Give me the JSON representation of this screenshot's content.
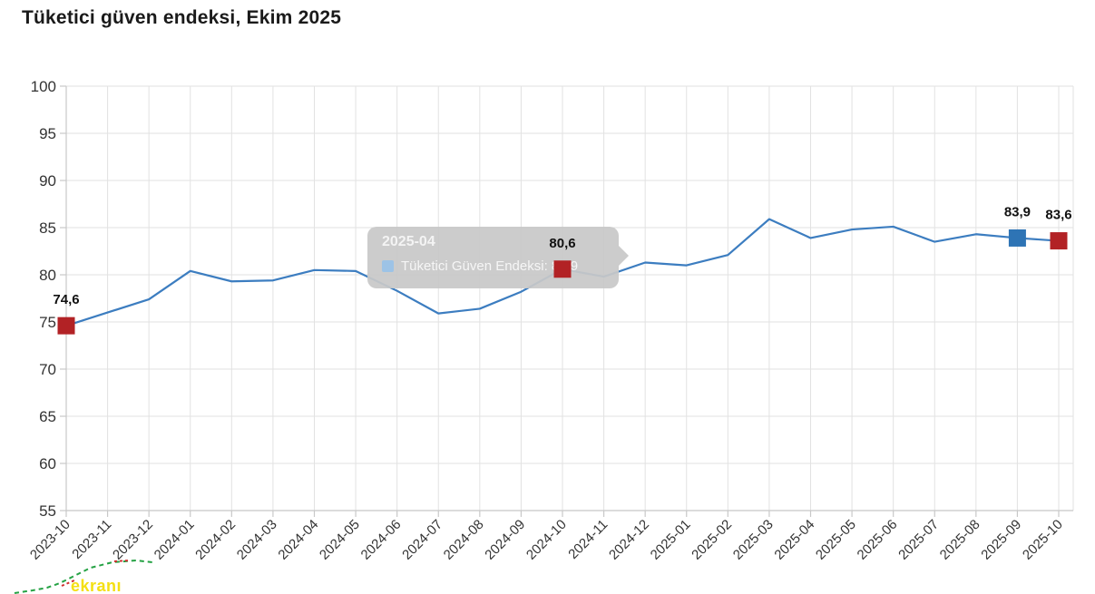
{
  "title": "Tüketici güven endeksi, Ekim 2025",
  "tooltip": {
    "title": "2025-04",
    "series_label": "Tüketici Güven Endeksi",
    "line": "Tüketici Güven Endeksi: 83,9",
    "swatch_color": "#9dc3e6"
  },
  "watermark": {
    "text": "ekranı",
    "text_color": "#f4e013",
    "curve_green": "#25a244",
    "curve_red": "#d03030"
  },
  "colors": {
    "line": "#3c7dc0",
    "marker_red": "#b22225",
    "marker_blue": "#2e74b5",
    "grid": "#e2e2e2",
    "axis": "#c8c8c8",
    "axis_text": "#333333",
    "label_text": "#111111"
  },
  "chart_data": {
    "type": "line",
    "title": "Tüketici güven endeksi, Ekim 2025",
    "xlabel": "",
    "ylabel": "",
    "ylim": [
      55,
      100
    ],
    "yticks": [
      55,
      60,
      65,
      70,
      75,
      80,
      85,
      90,
      95,
      100
    ],
    "grid": true,
    "x": [
      "2023-10",
      "2023-11",
      "2023-12",
      "2024-01",
      "2024-02",
      "2024-03",
      "2024-04",
      "2024-05",
      "2024-06",
      "2024-07",
      "2024-08",
      "2024-09",
      "2024-10",
      "2024-11",
      "2024-12",
      "2025-01",
      "2025-02",
      "2025-03",
      "2025-04",
      "2025-05",
      "2025-06",
      "2025-07",
      "2025-08",
      "2025-09",
      "2025-10"
    ],
    "series": [
      {
        "name": "Tüketici Güven Endeksi",
        "values": [
          74.6,
          76.0,
          77.4,
          80.4,
          79.3,
          79.4,
          80.5,
          80.4,
          78.3,
          75.9,
          76.4,
          78.2,
          80.6,
          79.8,
          81.3,
          81.0,
          82.1,
          85.9,
          83.9,
          84.8,
          85.1,
          83.5,
          84.3,
          83.9,
          83.6
        ]
      }
    ],
    "markers": [
      {
        "x": "2023-10",
        "value": 74.6,
        "label": "74,6",
        "color": "#b22225"
      },
      {
        "x": "2024-10",
        "value": 80.6,
        "label": "80,6",
        "color": "#b22225"
      },
      {
        "x": "2025-09",
        "value": 83.9,
        "label": "83,9",
        "color": "#2e74b5"
      },
      {
        "x": "2025-10",
        "value": 83.6,
        "label": "83,6",
        "color": "#b22225"
      }
    ]
  }
}
